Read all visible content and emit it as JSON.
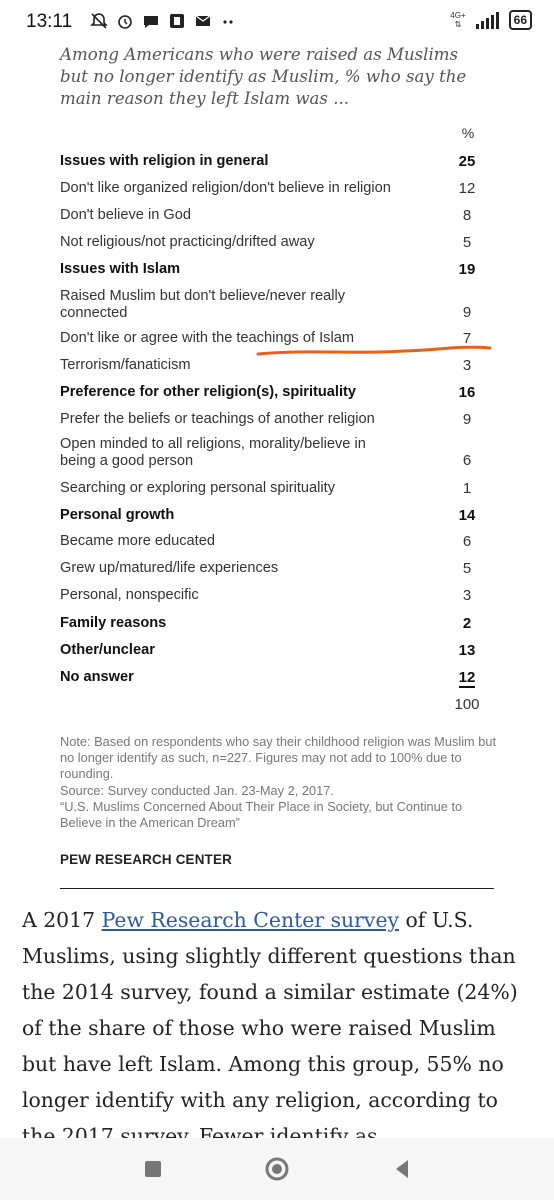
{
  "status_bar": {
    "time": "13:11",
    "network_label": "4G+",
    "battery": "66",
    "icons": [
      "bell-off-icon",
      "alarm-icon",
      "chat-bubble-icon",
      "app-notification-icon",
      "mail-icon",
      "more-dots-icon"
    ]
  },
  "figure": {
    "subtitle": "Among Americans who were raised as Muslims but no longer identify as Muslim, % who say the main reason they left Islam was ...",
    "percent_header": "%",
    "rows": [
      {
        "label": "Issues with religion in general",
        "value": "25",
        "bold": true
      },
      {
        "label": "Don't like organized religion/don't believe in religion",
        "value": "12",
        "bold": false
      },
      {
        "label": "Don't believe in God",
        "value": "8",
        "bold": false
      },
      {
        "label": "Not religious/not practicing/drifted away",
        "value": "5",
        "bold": false
      },
      {
        "label": "Issues with Islam",
        "value": "19",
        "bold": true
      },
      {
        "label": "Raised Muslim but don't believe/never really connected",
        "value": "9",
        "bold": false
      },
      {
        "label": "Don't like or agree with the teachings of Islam",
        "value": "7",
        "bold": false
      },
      {
        "label": "Terrorism/fanaticism",
        "value": "3",
        "bold": false
      },
      {
        "label": "Preference for other religion(s), spirituality",
        "value": "16",
        "bold": true
      },
      {
        "label": "Prefer the beliefs or teachings of another religion",
        "value": "9",
        "bold": false
      },
      {
        "label": "Open minded to all religions, morality/believe in being a good person",
        "value": "6",
        "bold": false
      },
      {
        "label": "Searching or exploring personal spirituality",
        "value": "1",
        "bold": false
      },
      {
        "label": "Personal growth",
        "value": "14",
        "bold": true
      },
      {
        "label": "Became more educated",
        "value": "6",
        "bold": false
      },
      {
        "label": "Grew up/matured/life experiences",
        "value": "5",
        "bold": false
      },
      {
        "label": "Personal, nonspecific",
        "value": "3",
        "bold": false
      },
      {
        "label": "Family reasons",
        "value": "2",
        "bold": true
      },
      {
        "label": "Other/unclear",
        "value": "13",
        "bold": true
      },
      {
        "label": "No answer",
        "value": "12",
        "bold": true
      }
    ],
    "total": "100",
    "note": "Note: Based on respondents who say their childhood religion was Muslim but no longer identify as such, n=227. Figures may not add to 100% due to rounding.",
    "source": "Source: Survey conducted Jan. 23-May 2, 2017.",
    "report": "“U.S. Muslims Concerned About Their Place in Society, but Continue to Believe in the American Dream”",
    "brand": "PEW RESEARCH CENTER",
    "highlight_color": "#e8601c"
  },
  "article": {
    "before_link": "A 2017 ",
    "link_text": "Pew Research Center survey",
    "after_link": " of U.S. Muslims, using slightly different questions than the 2014 survey, found a similar estimate (24%) of the share of those who were raised Muslim but have left Islam. Among this group, 55% no longer identify with any religion, according to the 2017 survey. Fewer identify as"
  },
  "nav_bar": {
    "buttons": [
      "recent-apps-icon",
      "home-icon",
      "back-icon"
    ]
  }
}
